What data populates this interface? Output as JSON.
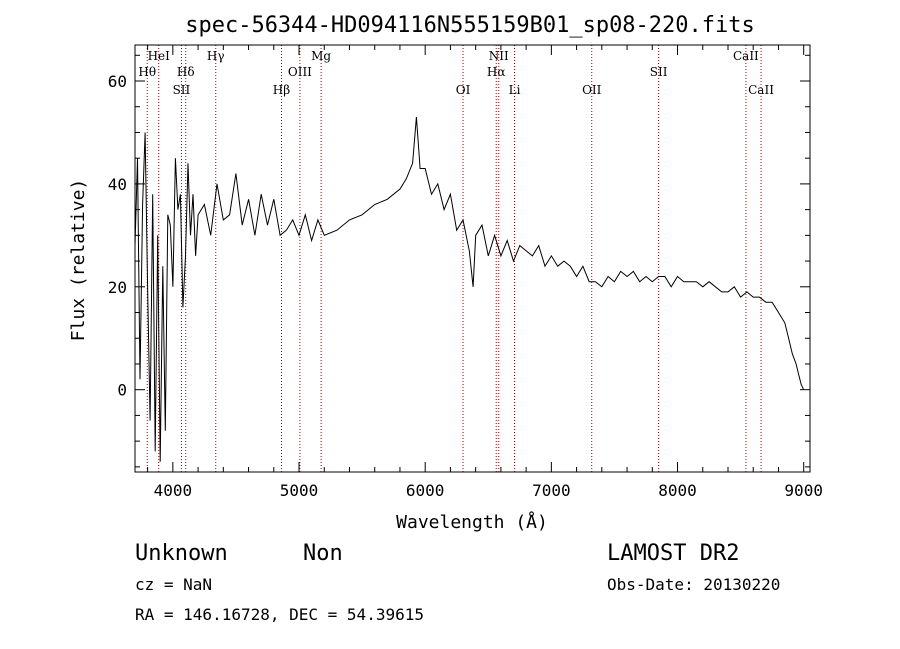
{
  "chart_data": {
    "type": "line",
    "title": "spec-56344-HD094116N555159B01_sp08-220.fits",
    "xlabel": "Wavelength (Å)",
    "ylabel": "Flux (relative)",
    "xlim": [
      3700,
      9050
    ],
    "ylim": [
      -16,
      67
    ],
    "x_ticks": [
      4000,
      5000,
      6000,
      7000,
      8000,
      9000
    ],
    "y_ticks": [
      0,
      20,
      40,
      60
    ],
    "grid": false,
    "legend": "none",
    "line_color": "#000000",
    "marker_color": "#aa0000",
    "series": [
      {
        "x": [
          3700,
          3720,
          3740,
          3760,
          3780,
          3800,
          3820,
          3840,
          3860,
          3880,
          3900,
          3920,
          3940,
          3960,
          3980,
          4000,
          4020,
          4040,
          4060,
          4080,
          4100,
          4120,
          4140,
          4160,
          4180,
          4200,
          4250,
          4300,
          4350,
          4400,
          4450,
          4500,
          4550,
          4600,
          4650,
          4700,
          4750,
          4800,
          4850,
          4900,
          4950,
          5000,
          5050,
          5100,
          5150,
          5200,
          5300,
          5400,
          5500,
          5600,
          5700,
          5800,
          5850,
          5900,
          5930,
          5960,
          6000,
          6050,
          6100,
          6150,
          6200,
          6250,
          6300,
          6350,
          6380,
          6400,
          6450,
          6500,
          6550,
          6600,
          6650,
          6700,
          6750,
          6800,
          6850,
          6900,
          6950,
          7000,
          7050,
          7100,
          7150,
          7200,
          7250,
          7300,
          7350,
          7400,
          7450,
          7500,
          7550,
          7600,
          7650,
          7700,
          7750,
          7800,
          7850,
          7900,
          7950,
          8000,
          8050,
          8100,
          8150,
          8200,
          8250,
          8300,
          8350,
          8400,
          8450,
          8500,
          8550,
          8600,
          8650,
          8700,
          8750,
          8800,
          8850,
          8880,
          8910,
          8940,
          8960,
          8980,
          9000
        ],
        "y": [
          28,
          45,
          2,
          36,
          50,
          20,
          -6,
          38,
          -12,
          30,
          -14,
          24,
          -8,
          34,
          32,
          20,
          45,
          35,
          38,
          16,
          26,
          44,
          30,
          38,
          26,
          34,
          36,
          30,
          40,
          33,
          34,
          42,
          32,
          37,
          30,
          38,
          32,
          37,
          30,
          31,
          33,
          30,
          34,
          29,
          33,
          30,
          31,
          33,
          34,
          36,
          37,
          39,
          41,
          44,
          53,
          43,
          43,
          38,
          40,
          35,
          38,
          31,
          33,
          27,
          20,
          30,
          32,
          26,
          30,
          26,
          29,
          25,
          28,
          27,
          26,
          28,
          24,
          26,
          24,
          25,
          24,
          22,
          24,
          21,
          21,
          20,
          22,
          21,
          23,
          22,
          23,
          21,
          22,
          21,
          22,
          22,
          20,
          22,
          21,
          21,
          21,
          20,
          21,
          20,
          19,
          19,
          20,
          18,
          19,
          18,
          18,
          17,
          17,
          15,
          13,
          10,
          7,
          5,
          3,
          1,
          0
        ]
      }
    ],
    "lines_top": [
      {
        "name": "HeI",
        "x": 3888
      },
      {
        "name": "Hθ",
        "x": 3797
      },
      {
        "name": "Hδ",
        "x": 4102
      },
      {
        "name": "SII",
        "x": 4068
      },
      {
        "name": "Hγ",
        "x": 4340
      },
      {
        "name": "Hβ",
        "x": 4861
      },
      {
        "name": "OIII",
        "x": 5007
      },
      {
        "name": "Mg",
        "x": 5175
      },
      {
        "name": "OI",
        "x": 6300
      },
      {
        "name": "NII",
        "x": 6583
      },
      {
        "name": "Hα",
        "x": 6563
      },
      {
        "name": "Li",
        "x": 6708
      },
      {
        "name": "OII",
        "x": 7320
      },
      {
        "name": "SII",
        "x": 7850
      },
      {
        "name": "CaII",
        "x": 8542
      },
      {
        "name": "CaII",
        "x": 8662
      }
    ]
  },
  "footer": {
    "object_class": "Unknown",
    "object_subclass": "Non",
    "survey": "LAMOST DR2",
    "redshift": "cz = NaN",
    "obs_date": "Obs-Date: 20130220",
    "coordinates": "RA = 146.16728, DEC =  54.39615"
  }
}
